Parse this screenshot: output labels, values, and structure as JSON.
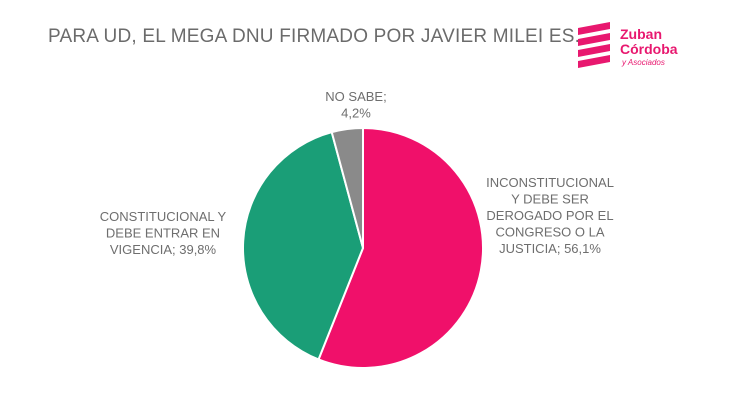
{
  "header": {
    "title": "PARA UD, EL MEGA DNU FIRMADO POR JAVIER MILEI ES..."
  },
  "logo": {
    "line1": "Zuban",
    "line2": "Córdoba",
    "line3": "y Asociados",
    "color": "#e8186f"
  },
  "chart_data": {
    "type": "pie",
    "title": "PARA UD, EL MEGA DNU FIRMADO POR JAVIER MILEI ES...",
    "slices": [
      {
        "name": "INCONSTITUCIONAL Y DEBE SER DEROGADO POR EL CONGRESO O LA JUSTICIA",
        "value": 56.1,
        "value_label": "56,1%",
        "color": "#f0106a",
        "label_lines": [
          "INCONSTITUCIONAL",
          "Y DEBE SER",
          "DEROGADO POR EL",
          "CONGRESO O LA",
          "JUSTICIA; 56,1%"
        ]
      },
      {
        "name": "CONSTITUCIONAL Y DEBE ENTRAR EN VIGENCIA",
        "value": 39.8,
        "value_label": "39,8%",
        "color": "#1a9e77",
        "label_lines": [
          "CONSTITUCIONAL Y",
          "DEBE ENTRAR EN",
          "VIGENCIA; 39,8%"
        ]
      },
      {
        "name": "NO SABE",
        "value": 4.2,
        "value_label": "4,2%",
        "color": "#8a8a8a",
        "label_lines": [
          "NO SABE;",
          "4,2%"
        ]
      }
    ],
    "start": "12 o'clock",
    "direction": "clockwise"
  }
}
